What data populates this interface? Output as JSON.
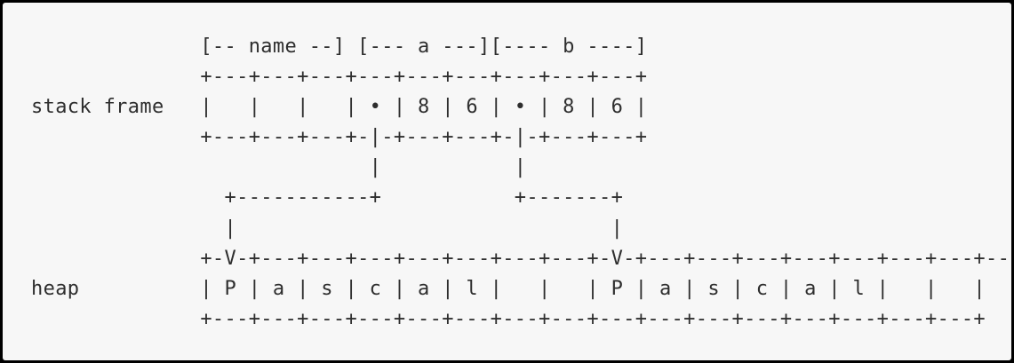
{
  "diagram": {
    "lines": [
      "              [-- name --] [--- a ---][---- b ----]",
      "              +---+---+---+---+---+---+---+---+---+",
      "stack frame   |   |   |   | • | 8 | 6 | • | 8 | 6 |",
      "              +---+---+---+-|-+---+---+-|-+---+---+",
      "                            |           |",
      "                +-----------+           +-------+",
      "                |                               |",
      "              +-V-+---+---+---+---+---+---+---+-V-+---+---+---+---+---+---+---+---+",
      "heap          | P | a | s | c | a | l |   |   | P | a | s | c | a | l |   |   |",
      "              +---+---+---+---+---+---+---+---+---+---+---+---+---+---+---+---+"
    ]
  }
}
